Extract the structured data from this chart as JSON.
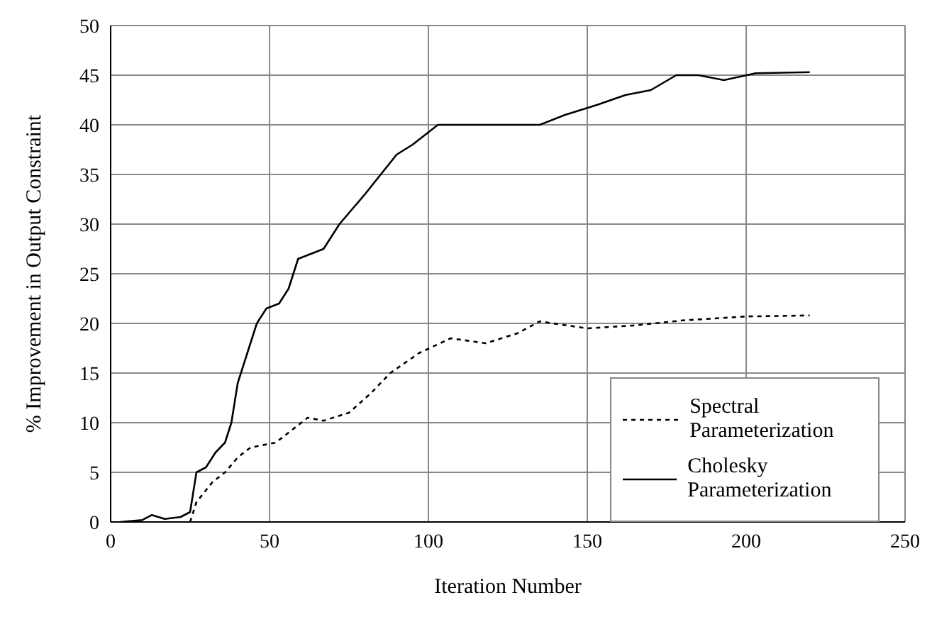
{
  "chart_data": {
    "type": "line",
    "xlabel": "Iteration Number",
    "ylabel": "% Improvement in Output Constraint",
    "xlim": [
      0,
      250
    ],
    "xticks": [
      0,
      50,
      100,
      150,
      200,
      250
    ],
    "ylim": [
      0,
      50
    ],
    "yticks": [
      0,
      5,
      10,
      15,
      20,
      25,
      30,
      35,
      40,
      45,
      50
    ],
    "grid": true,
    "legend": "bottom right",
    "marker": "none",
    "series": [
      {
        "name": "Spectral Parameterization",
        "color": "#000000",
        "line_style": "dotted",
        "x": [
          25,
          27,
          32,
          36,
          40,
          44,
          52,
          56,
          62,
          67,
          75,
          82,
          88,
          97,
          107,
          118,
          128,
          135,
          150,
          165,
          180,
          200,
          220
        ],
        "values": [
          0,
          2,
          4,
          5,
          6.5,
          7.5,
          8,
          9,
          10.5,
          10.2,
          11,
          13,
          15,
          17,
          18.5,
          18,
          19,
          20.2,
          19.5,
          19.8,
          20.3,
          20.7,
          20.8
        ]
      },
      {
        "name": "Cholesky Parameterization",
        "color": "#000000",
        "line_style": "solid",
        "x": [
          3,
          10,
          13,
          17,
          22,
          25,
          27,
          30,
          33,
          36,
          38,
          40,
          43,
          46,
          49,
          53,
          56,
          59,
          63,
          67,
          72,
          76,
          80,
          85,
          90,
          95,
          103,
          110,
          135,
          143,
          153,
          162,
          170,
          178,
          185,
          193,
          203,
          220
        ],
        "values": [
          0,
          0.2,
          0.7,
          0.3,
          0.5,
          1,
          5,
          5.5,
          7,
          8,
          10,
          14,
          17,
          20,
          21.5,
          22,
          23.5,
          26.5,
          27,
          27.5,
          30,
          31.5,
          33,
          35,
          37,
          38,
          40,
          40,
          40,
          41,
          42,
          43,
          43.5,
          45,
          45,
          44.5,
          45.2,
          45.3
        ]
      }
    ]
  }
}
